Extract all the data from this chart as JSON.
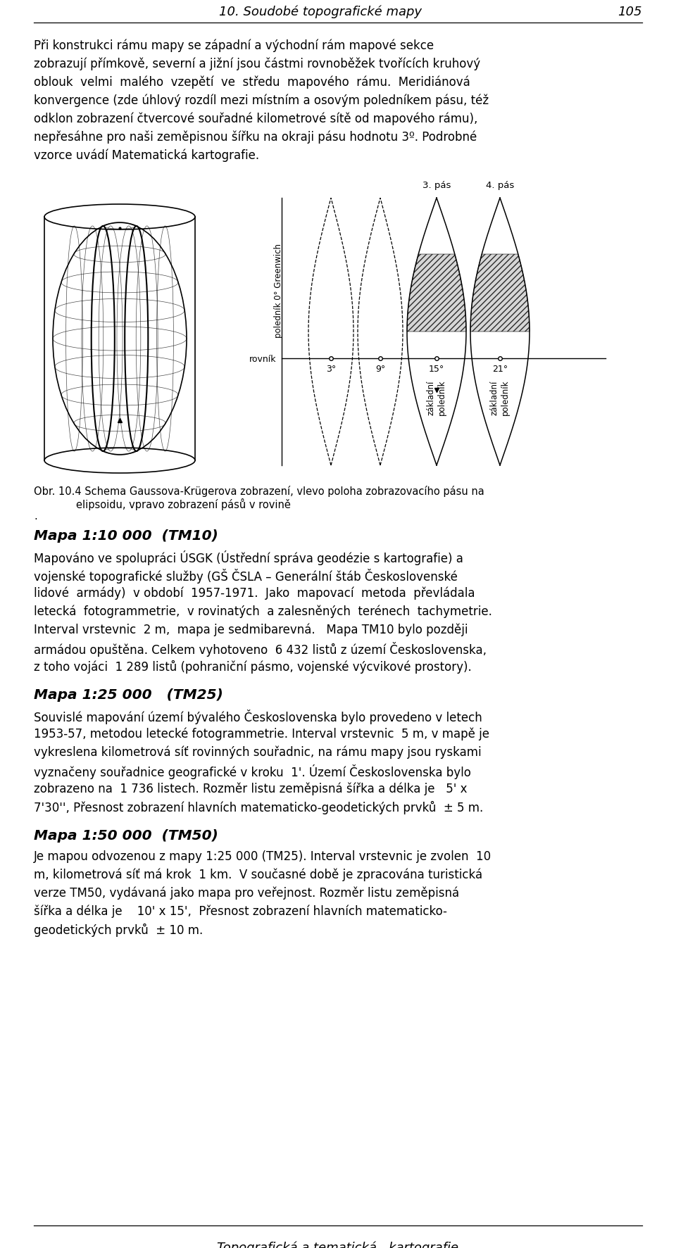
{
  "header_title": "10. Soudobé topografické mapy",
  "header_page": "105",
  "footer_text": "Topografická a tematická   kartografie",
  "bg_color": "#ffffff",
  "text_color": "#000000",
  "p1_lines": [
    "Při konstrukci rámu mapy se západní a východní rám mapové sekce",
    "zobrazují přímkově, severní a jižní jsou částmi rovnoběžek tvořících kruhový",
    "oblouk  velmi  malého  vzepětí  ve  středu  mapového  rámu.  Meridiánová",
    "konvergence (zde úhlový rozdíl mezi místním a osovým poledníkem pásu, též",
    "odklon zobrazení čtvercové souřadné kilometrové sítě od mapového rámu),",
    "nepřesáhne pro naši zeměpisnou šířku na okraji pásu hodnotu 3º. Podrobné",
    "vzorce uvádí Matematická kartografie."
  ],
  "fig_caption_line1": "Obr. 10.4 Schema Gaussova-Krügerova zobrazení, vlevo poloha zobrazovacího pásu na",
  "fig_caption_line2": "elipsoidu, vpravo zobrazení pásů v rovině",
  "fig_caption_dot": ".",
  "section1_title": "Mapa 1:10 000  (TM10)",
  "s1_lines": [
    "Mapováno ve spolupráci ÚSGK (Ústřední správa geodézie s kartografie) a",
    "vojenské topografické služby (GŠ ČSLA – Generální štáb Československé",
    "lidové  armády)  v období  1957-1971.  Jako  mapovací  metoda  převládala",
    "letecká  fotogrammetrie,  v rovinatých  a zalesněných  terénech  tachymetrie.",
    "Interval vrstevnic  2 m,  mapa je sedmibarevná.   Mapa TM10 bylo později",
    "armádou opuštěna. Celkem vyhotoveno  6 432 listů z území Československa,",
    "z toho vojáci  1 289 listů (pohraniční pásmo, vojenské výcvikové prostory)."
  ],
  "section2_title": "Mapa 1:25 000   (TM25)",
  "s2_lines": [
    "Souvislé mapování území bývalého Československa bylo provedeno v letech",
    "1953-57, metodou letecké fotogrammetrie. Interval vrstevnic  5 m, v mapě je",
    "vykreslena kilometrová síť rovinných souřadnic, na rámu mapy jsou ryskami",
    "vyznačeny souřadnice geografické v kroku  1'. Území Československa bylo",
    "zobrazeno na  1 736 listech. Rozměr listu zeměpisná šířka a délka je   5' x",
    "7'30'', Přesnost zobrazení hlavních matematicko-geodetických prvků  ± 5 m."
  ],
  "section3_title": "Mapa 1:50 000  (TM50)",
  "s3_lines": [
    "Je mapou odvozenou z mapy 1:25 000 (TM25). Interval vrstevnic je zvolen  10",
    "m, kilometrová síť má krok  1 km.  V současné době je zpracována turistická",
    "verze TM50, vydávaná jako mapa pro veřejnost. Rozměr listu zeměpisná",
    "šířka a délka je    10' x 15',  Přesnost zobrazení hlavních matematicko-",
    "geodetických prvků  ± 10 m."
  ]
}
